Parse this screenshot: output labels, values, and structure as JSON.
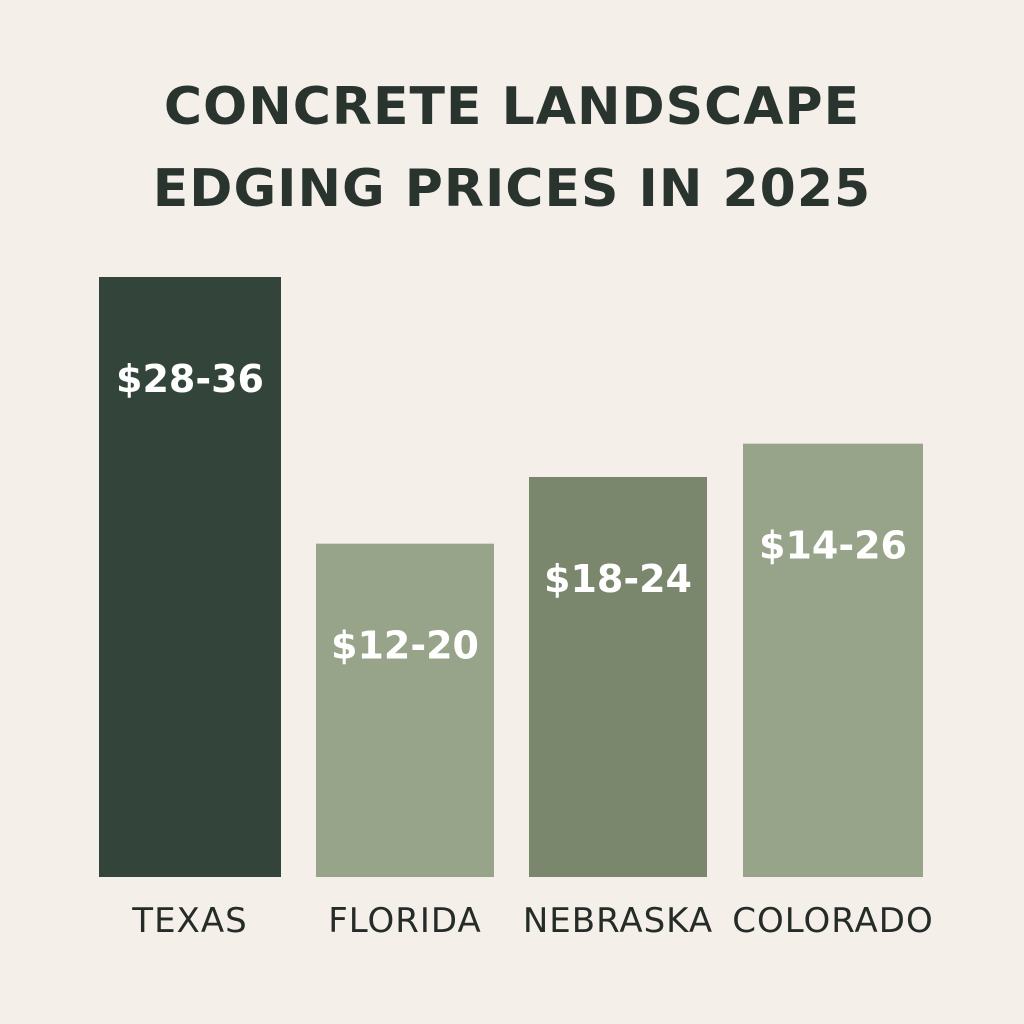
{
  "chart_data": {
    "type": "bar",
    "title_lines": [
      "CONCRETE LANDSCAPE",
      "EDGING PRICES IN 2025"
    ],
    "categories": [
      "TEXAS",
      "FLORIDA",
      "NEBRASKA",
      "COLORADO"
    ],
    "value_labels": [
      "$28-36",
      "$12-20",
      "$18-24",
      "$14-26"
    ],
    "ranges": [
      [
        28,
        36
      ],
      [
        12,
        20
      ],
      [
        18,
        24
      ],
      [
        14,
        26
      ]
    ],
    "bar_colors": [
      "#33453a",
      "#98a48a",
      "#7a876d",
      "#98a48a"
    ],
    "xlabel": "",
    "ylabel": "",
    "grid": false,
    "legend": "none"
  }
}
